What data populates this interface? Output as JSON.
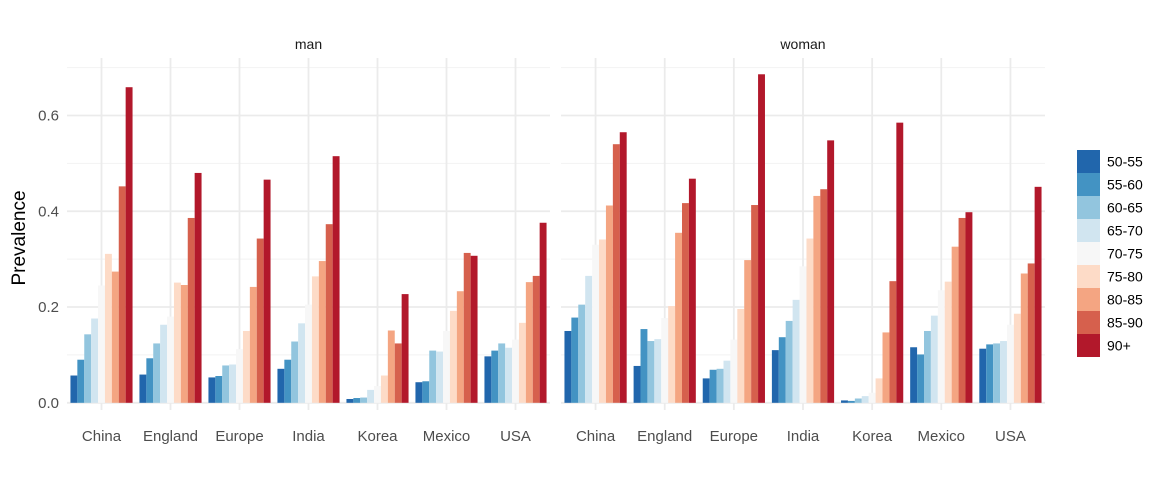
{
  "chart_data": {
    "type": "bar",
    "facets": [
      "man",
      "woman"
    ],
    "categories": [
      "China",
      "England",
      "Europe",
      "India",
      "Korea",
      "Mexico",
      "USA"
    ],
    "ylabel": "Prevalence",
    "xlabel": "",
    "ylim": [
      -0.015,
      0.72
    ],
    "yticks": [
      0.0,
      0.2,
      0.4,
      0.6
    ],
    "ytick_labels": [
      "0.0",
      "0.2",
      "0.4",
      "0.6"
    ],
    "grid": true,
    "legend_position": "right",
    "series": [
      {
        "name": "50-55",
        "color": "#2166ac",
        "values": {
          "man": [
            0.057,
            0.059,
            0.053,
            0.071,
            0.008,
            0.043,
            0.097
          ],
          "woman": [
            0.15,
            0.077,
            0.051,
            0.11,
            0.005,
            0.116,
            0.113
          ]
        }
      },
      {
        "name": "55-60",
        "color": "#4393c3",
        "values": {
          "man": [
            0.09,
            0.093,
            0.056,
            0.09,
            0.01,
            0.045,
            0.109
          ],
          "woman": [
            0.178,
            0.154,
            0.069,
            0.137,
            0.004,
            0.101,
            0.122
          ]
        }
      },
      {
        "name": "60-65",
        "color": "#92c5de",
        "values": {
          "man": [
            0.143,
            0.124,
            0.078,
            0.128,
            0.011,
            0.109,
            0.124
          ],
          "woman": [
            0.205,
            0.129,
            0.071,
            0.171,
            0.009,
            0.15,
            0.124
          ]
        }
      },
      {
        "name": "65-70",
        "color": "#d1e5f0",
        "values": {
          "man": [
            0.176,
            0.163,
            0.08,
            0.166,
            0.027,
            0.107,
            0.115
          ],
          "woman": [
            0.265,
            0.133,
            0.088,
            0.215,
            0.014,
            0.182,
            0.129
          ]
        }
      },
      {
        "name": "70-75",
        "color": "#f7f7f7",
        "values": {
          "man": [
            0.245,
            0.18,
            0.112,
            0.205,
            0.035,
            0.15,
            0.132
          ],
          "woman": [
            0.33,
            0.177,
            0.132,
            0.285,
            0.021,
            0.235,
            0.163
          ]
        }
      },
      {
        "name": "75-80",
        "color": "#fddbc7",
        "values": {
          "man": [
            0.311,
            0.251,
            0.15,
            0.264,
            0.057,
            0.192,
            0.167
          ],
          "woman": [
            0.341,
            0.202,
            0.196,
            0.343,
            0.051,
            0.253,
            0.186
          ]
        }
      },
      {
        "name": "80-85",
        "color": "#f4a582",
        "values": {
          "man": [
            0.274,
            0.246,
            0.242,
            0.296,
            0.151,
            0.233,
            0.252
          ],
          "woman": [
            0.412,
            0.355,
            0.298,
            0.432,
            0.147,
            0.326,
            0.27
          ]
        }
      },
      {
        "name": "85-90",
        "color": "#d6604d",
        "values": {
          "man": [
            0.452,
            0.386,
            0.343,
            0.373,
            0.124,
            0.313,
            0.265
          ],
          "woman": [
            0.54,
            0.417,
            0.413,
            0.446,
            0.254,
            0.386,
            0.291
          ]
        }
      },
      {
        "name": "90+",
        "color": "#b2182b",
        "values": {
          "man": [
            0.659,
            0.48,
            0.466,
            0.515,
            0.227,
            0.307,
            0.376
          ],
          "woman": [
            0.565,
            0.468,
            0.686,
            0.548,
            0.585,
            0.398,
            0.451
          ]
        }
      }
    ]
  }
}
